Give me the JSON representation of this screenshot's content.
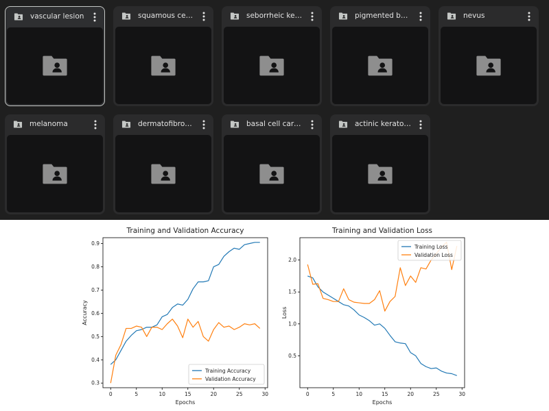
{
  "folders": [
    {
      "name": "vascular lesion",
      "selected": true
    },
    {
      "name": "squamous cell c...",
      "selected": false
    },
    {
      "name": "seborrheic kerat...",
      "selected": false
    },
    {
      "name": "pigmented beni...",
      "selected": false
    },
    {
      "name": "nevus",
      "selected": false
    },
    {
      "name": "melanoma",
      "selected": false
    },
    {
      "name": "dermatofibroma",
      "selected": false
    },
    {
      "name": "basal cell carcin...",
      "selected": false
    },
    {
      "name": "actinic keratosis",
      "selected": false
    }
  ],
  "icons": {
    "folder": "shared-folder-icon",
    "menu": "more-vert-icon"
  },
  "colors": {
    "drive_background": "#1f1f1f",
    "card_background": "#2b2b2c",
    "thumbnail_background": "#131314",
    "text": "#e3e3e3",
    "training_series": "#1f77b4",
    "validation_series": "#ff7f0e"
  },
  "chart_data": [
    {
      "type": "line",
      "title": "Training and Validation Accuracy",
      "xlabel": "Epochs",
      "ylabel": "Accuracy",
      "xlim": [
        -1.5,
        30.5
      ],
      "ylim": [
        0.28,
        0.925
      ],
      "xticks": [
        0,
        5,
        10,
        15,
        20,
        25,
        30
      ],
      "yticks": [
        0.3,
        0.4,
        0.5,
        0.6,
        0.7,
        0.8,
        0.9
      ],
      "ytick_labels": [
        "0.3",
        "0.4",
        "0.5",
        "0.6",
        "0.7",
        "0.8",
        "0.9"
      ],
      "legend_position": "lower right",
      "x": [
        0,
        1,
        2,
        3,
        4,
        5,
        6,
        7,
        8,
        9,
        10,
        11,
        12,
        13,
        14,
        15,
        16,
        17,
        18,
        19,
        20,
        21,
        22,
        23,
        24,
        25,
        26,
        27,
        28,
        29
      ],
      "series": [
        {
          "name": "Training Accuracy",
          "color": "#1f77b4",
          "values": [
            0.38,
            0.4,
            0.44,
            0.48,
            0.505,
            0.525,
            0.53,
            0.54,
            0.54,
            0.55,
            0.585,
            0.595,
            0.625,
            0.64,
            0.635,
            0.66,
            0.705,
            0.735,
            0.735,
            0.74,
            0.8,
            0.81,
            0.845,
            0.865,
            0.88,
            0.875,
            0.895,
            0.9,
            0.905,
            0.905
          ]
        },
        {
          "name": "Validation Accuracy",
          "color": "#ff7f0e",
          "values": [
            0.3,
            0.42,
            0.465,
            0.535,
            0.535,
            0.545,
            0.54,
            0.5,
            0.54,
            0.54,
            0.53,
            0.555,
            0.575,
            0.545,
            0.495,
            0.575,
            0.54,
            0.565,
            0.5,
            0.48,
            0.53,
            0.56,
            0.54,
            0.545,
            0.53,
            0.54,
            0.555,
            0.55,
            0.555,
            0.535
          ]
        }
      ]
    },
    {
      "type": "line",
      "title": "Training and Validation Loss",
      "xlabel": "Epochs",
      "ylabel": "Loss",
      "xlim": [
        -1.5,
        30.5
      ],
      "ylim": [
        0.0,
        2.35
      ],
      "xticks": [
        0,
        5,
        10,
        15,
        20,
        25,
        30
      ],
      "yticks": [
        0.5,
        1.0,
        1.5,
        2.0
      ],
      "ytick_labels": [
        "0.5",
        "1.0",
        "1.5",
        "2.0"
      ],
      "legend_position": "upper right",
      "x": [
        0,
        1,
        2,
        3,
        4,
        5,
        6,
        7,
        8,
        9,
        10,
        11,
        12,
        13,
        14,
        15,
        16,
        17,
        18,
        19,
        20,
        21,
        22,
        23,
        24,
        25,
        26,
        27,
        28,
        29
      ],
      "series": [
        {
          "name": "Training Loss",
          "color": "#1f77b4",
          "values": [
            1.75,
            1.72,
            1.58,
            1.5,
            1.45,
            1.4,
            1.35,
            1.3,
            1.28,
            1.22,
            1.14,
            1.1,
            1.05,
            0.98,
            1.0,
            0.93,
            0.82,
            0.72,
            0.7,
            0.69,
            0.55,
            0.5,
            0.38,
            0.33,
            0.3,
            0.31,
            0.26,
            0.23,
            0.22,
            0.19
          ]
        },
        {
          "name": "Validation Loss",
          "color": "#ff7f0e",
          "values": [
            1.93,
            1.62,
            1.63,
            1.4,
            1.38,
            1.35,
            1.35,
            1.55,
            1.38,
            1.34,
            1.33,
            1.32,
            1.32,
            1.38,
            1.52,
            1.2,
            1.35,
            1.43,
            1.88,
            1.6,
            1.75,
            1.65,
            1.88,
            1.86,
            2.0,
            2.1,
            2.2,
            2.28,
            1.85,
            2.22
          ]
        }
      ]
    }
  ]
}
